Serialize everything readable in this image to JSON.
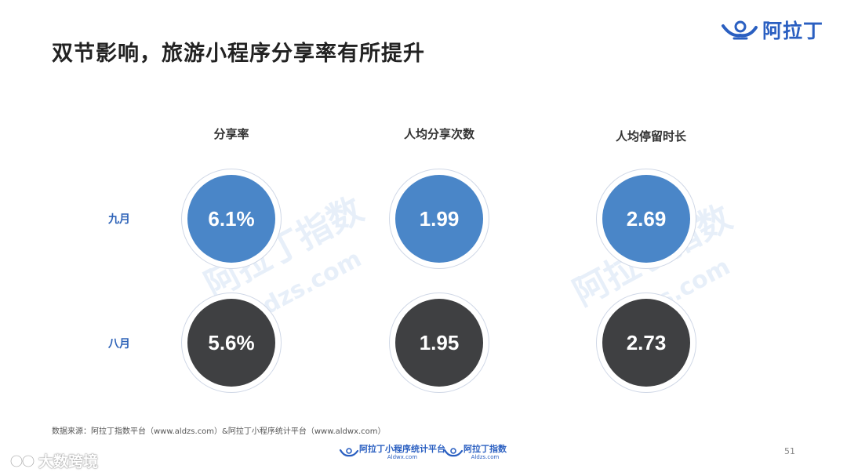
{
  "title": "双节影响，旅游小程序分享率有所提升",
  "logo": {
    "text": "阿拉丁"
  },
  "columns": [
    "分享率",
    "人均分享次数",
    "人均停留时长"
  ],
  "rows": [
    {
      "label": "九月",
      "values": [
        "6.1%",
        "1.99",
        "2.69"
      ]
    },
    {
      "label": "八月",
      "values": [
        "5.6%",
        "1.95",
        "2.73"
      ]
    }
  ],
  "watermark": {
    "brand": "阿拉丁指数",
    "domain": "aldzs.com"
  },
  "source": "数据来源：阿拉丁指数平台（www.aldzs.com）&阿拉丁小程序统计平台（www.aldwx.com）",
  "footer": {
    "logo1": {
      "main": "阿拉丁小程序统计平台",
      "sub": "Aldwx.com"
    },
    "logo2": {
      "main": "阿拉丁指数",
      "sub": "Aldzs.com"
    }
  },
  "page_number": "51",
  "corner_brand": "大数跨境",
  "colors": {
    "accent_blue": "#4a86c8",
    "dark": "#3f4042",
    "brand_blue": "#2a5fc1"
  }
}
